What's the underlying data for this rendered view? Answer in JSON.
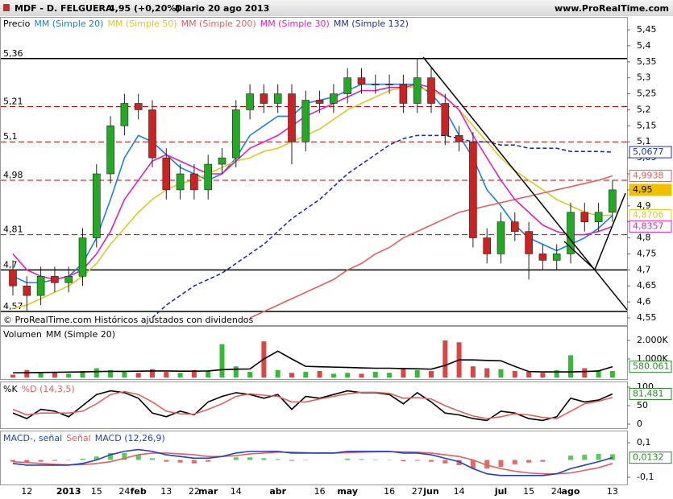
{
  "chart_data": [
    {
      "type": "candlestick",
      "title": "MDF - D. FELGUERA",
      "price_change": "4,95 (+0,20%)",
      "period": "Diario 20 ago 2013",
      "site": "www.ProRealTime.com",
      "footer": "© ProRealTime.com Históricos ajustados con dividendos",
      "categories": [
        null,
        "12",
        null,
        null,
        "2013",
        null,
        "15",
        null,
        "24",
        "feb",
        null,
        "13",
        null,
        "22",
        "mar",
        null,
        "14",
        null,
        null,
        "abr",
        null,
        null,
        "16",
        null,
        "may",
        null,
        null,
        "16",
        null,
        "27",
        "jun",
        null,
        "14",
        null,
        null,
        "jul",
        null,
        "15",
        null,
        "24",
        "ago",
        null,
        null,
        "13"
      ],
      "name": "Precio",
      "up_color": "#22aa22",
      "down_color": "#cc2222",
      "open": [
        4.7,
        4.65,
        4.62,
        4.68,
        4.66,
        4.68,
        4.8,
        5.0,
        5.15,
        5.22,
        5.2,
        5.05,
        4.95,
        5.0,
        4.95,
        5.03,
        5.05,
        5.2,
        5.25,
        5.22,
        5.25,
        5.1,
        5.23,
        5.22,
        5.25,
        5.3,
        5.28,
        5.28,
        5.28,
        5.22,
        5.3,
        5.22,
        5.12,
        5.1,
        4.8,
        4.75,
        4.85,
        4.82,
        4.75,
        4.73,
        4.75,
        4.88,
        4.85,
        4.88
      ],
      "high": [
        4.73,
        4.68,
        4.71,
        4.71,
        4.71,
        4.83,
        5.03,
        5.18,
        5.25,
        5.25,
        5.23,
        5.08,
        5.03,
        5.03,
        5.06,
        5.08,
        5.23,
        5.28,
        5.28,
        5.28,
        5.28,
        5.26,
        5.26,
        5.28,
        5.33,
        5.33,
        5.31,
        5.31,
        5.31,
        5.36,
        5.33,
        5.25,
        5.15,
        5.13,
        4.83,
        4.88,
        4.88,
        4.85,
        4.78,
        4.78,
        4.91,
        4.91,
        4.91,
        4.98
      ],
      "low": [
        4.62,
        4.57,
        4.59,
        4.63,
        4.63,
        4.65,
        4.77,
        4.97,
        5.12,
        5.17,
        5.02,
        4.92,
        4.92,
        4.92,
        4.92,
        5.0,
        5.02,
        5.17,
        5.19,
        5.19,
        5.03,
        5.07,
        5.19,
        5.19,
        5.22,
        5.25,
        5.25,
        5.25,
        5.19,
        5.19,
        5.19,
        5.09,
        5.07,
        4.77,
        4.72,
        4.72,
        4.79,
        4.67,
        4.7,
        4.7,
        4.72,
        4.82,
        4.82,
        4.85
      ],
      "close": [
        4.65,
        4.62,
        4.68,
        4.66,
        4.68,
        4.8,
        5.0,
        5.15,
        5.22,
        5.2,
        5.05,
        4.95,
        5.0,
        4.95,
        5.03,
        5.05,
        5.2,
        5.25,
        5.22,
        5.25,
        5.1,
        5.23,
        5.22,
        5.25,
        5.3,
        5.28,
        5.28,
        5.28,
        5.22,
        5.3,
        5.22,
        5.12,
        5.1,
        4.8,
        4.75,
        4.85,
        4.82,
        4.75,
        4.73,
        4.75,
        4.88,
        4.85,
        4.88,
        4.95
      ],
      "last_label": "4,95",
      "last_color": "#f0c000",
      "series": [
        {
          "name": "MM (Simple 20)",
          "color": "#1e7fe0",
          "values": [
            4.68,
            4.66,
            4.66,
            4.67,
            4.68,
            4.72,
            4.8,
            4.92,
            5.05,
            5.12,
            5.1,
            5.06,
            5.02,
            5.0,
            4.98,
            5.0,
            5.05,
            5.12,
            5.15,
            5.18,
            5.18,
            5.22,
            5.23,
            5.24,
            5.26,
            5.28,
            5.28,
            5.28,
            5.28,
            5.28,
            5.25,
            5.2,
            5.12,
            5.05,
            4.95,
            4.9,
            4.84,
            4.8,
            4.78,
            4.76,
            4.78,
            4.8,
            4.83,
            4.87
          ]
        },
        {
          "name": "MM (Simple 50)",
          "color": "#d8cc20",
          "values": [
            4.58,
            4.59,
            4.61,
            4.63,
            4.65,
            4.68,
            4.72,
            4.78,
            4.83,
            4.88,
            4.92,
            4.95,
            4.97,
            4.98,
            5.0,
            5.02,
            5.04,
            5.05,
            5.07,
            5.08,
            5.1,
            5.12,
            5.14,
            5.17,
            5.2,
            5.22,
            5.24,
            5.26,
            5.27,
            5.27,
            5.26,
            5.24,
            5.2,
            5.15,
            5.1,
            5.05,
            5.01,
            4.98,
            4.95,
            4.92,
            4.9,
            4.88,
            4.87,
            4.8706
          ],
          "last_label": "4,8706"
        },
        {
          "name": "MM (Simple 200)",
          "color": "#e06060",
          "values": [
            null,
            null,
            null,
            null,
            null,
            null,
            null,
            null,
            null,
            null,
            null,
            null,
            null,
            null,
            null,
            null,
            null,
            4.55,
            4.57,
            4.59,
            4.61,
            4.63,
            4.65,
            4.67,
            4.7,
            4.72,
            4.75,
            4.77,
            4.8,
            4.82,
            4.84,
            4.86,
            4.88,
            4.89,
            4.9,
            4.91,
            4.92,
            4.93,
            4.94,
            4.95,
            4.96,
            4.97,
            4.98,
            4.9938
          ],
          "last_label": "4,9938"
        },
        {
          "name": "MM (Simple 30)",
          "color": "#e020c0",
          "values": [
            4.75,
            4.7,
            4.68,
            4.67,
            4.68,
            4.7,
            4.75,
            4.82,
            4.92,
            4.98,
            5.04,
            5.06,
            5.04,
            5.02,
            5.0,
            5.0,
            5.04,
            5.08,
            5.1,
            5.12,
            5.15,
            5.18,
            5.2,
            5.22,
            5.24,
            5.26,
            5.26,
            5.27,
            5.27,
            5.28,
            5.27,
            5.24,
            5.2,
            5.12,
            5.05,
            4.98,
            4.92,
            4.88,
            4.84,
            4.82,
            4.81,
            4.81,
            4.82,
            4.8357
          ],
          "last_label": "4,8357"
        },
        {
          "name": "MM (Simple 132)",
          "color": "#2030a0",
          "dashed": true,
          "values": [
            null,
            null,
            null,
            null,
            null,
            null,
            null,
            null,
            null,
            null,
            4.55,
            4.59,
            4.62,
            4.65,
            4.67,
            4.69,
            4.72,
            4.75,
            4.78,
            4.82,
            4.86,
            4.89,
            4.92,
            4.96,
            5.0,
            5.03,
            5.06,
            5.09,
            5.11,
            5.12,
            5.12,
            5.12,
            5.11,
            5.1,
            5.1,
            5.09,
            5.09,
            5.08,
            5.08,
            5.08,
            5.07,
            5.07,
            5.07,
            5.0677
          ],
          "last_label": "5,0677"
        }
      ],
      "levels": [
        {
          "value": 5.36,
          "label": "5,36",
          "style": "solid"
        },
        {
          "value": 5.21,
          "label": "5,21",
          "style": "dashed"
        },
        {
          "value": 5.1,
          "label": "5,1",
          "style": "dashed"
        },
        {
          "value": 4.98,
          "label": "4,98",
          "style": "dashed"
        },
        {
          "value": 4.81,
          "label": "4,81",
          "style": "dashed"
        },
        {
          "value": 4.7,
          "label": "4,7",
          "style": "solid"
        },
        {
          "value": 4.57,
          "label": "4,57",
          "style": "solid"
        }
      ],
      "ylim": [
        4.55,
        5.45
      ],
      "yticks": [
        {
          "value": 4.55,
          "label": "4,55"
        },
        {
          "value": 4.6,
          "label": "4,6"
        },
        {
          "value": 4.65,
          "label": "4,65"
        },
        {
          "value": 4.7,
          "label": "4,7"
        },
        {
          "value": 4.75,
          "label": "4,75"
        },
        {
          "value": 4.8,
          "label": "4,8"
        },
        {
          "value": 4.85,
          "label": "4,85"
        },
        {
          "value": 4.9,
          "label": "4,9"
        },
        {
          "value": 4.95,
          "label": "4,95"
        },
        {
          "value": 5.0,
          "label": "5"
        },
        {
          "value": 5.05,
          "label": "5,05"
        },
        {
          "value": 5.1,
          "label": "5,1"
        },
        {
          "value": 5.15,
          "label": "5,15"
        },
        {
          "value": 5.2,
          "label": "5,2"
        },
        {
          "value": 5.25,
          "label": "5,25"
        },
        {
          "value": 5.3,
          "label": "5,3"
        },
        {
          "value": 5.35,
          "label": "5,35"
        },
        {
          "value": 5.4,
          "label": "5,4"
        },
        {
          "value": 5.45,
          "label": "5,45"
        }
      ]
    },
    {
      "type": "bar",
      "name": "Volumen",
      "up_color": "#33bb33",
      "down_color": "#dd4444",
      "values": [
        150,
        400,
        250,
        300,
        200,
        350,
        500,
        400,
        300,
        250,
        450,
        300,
        250,
        400,
        350,
        1800,
        600,
        300,
        1950,
        400,
        250,
        300,
        350,
        200,
        250,
        200,
        300,
        250,
        500,
        400,
        350,
        2000,
        1900,
        600,
        500,
        450,
        350,
        300,
        250,
        400,
        1200,
        500,
        400,
        350
      ],
      "series": [
        {
          "name": "MM (Simple 20)",
          "color": "#000000",
          "values": [
            250,
            260,
            270,
            280,
            290,
            300,
            320,
            330,
            330,
            340,
            350,
            350,
            340,
            340,
            350,
            420,
            450,
            460,
            1000,
            1420,
            1000,
            600,
            580,
            560,
            540,
            520,
            500,
            500,
            480,
            470,
            450,
            650,
            950,
            950,
            920,
            900,
            600,
            320,
            300,
            300,
            300,
            320,
            350,
            580.061
          ],
          "last_label": "580.061"
        }
      ],
      "ylim": [
        0,
        2000
      ],
      "yticks": [
        {
          "value": 1000,
          "label": "1.000K"
        },
        {
          "value": 2000,
          "label": "2.000K"
        }
      ]
    },
    {
      "type": "line",
      "series": [
        {
          "name": "%K",
          "color": "#000000",
          "values": [
            30,
            15,
            40,
            35,
            20,
            50,
            80,
            90,
            85,
            70,
            30,
            20,
            35,
            25,
            60,
            75,
            85,
            80,
            70,
            80,
            40,
            75,
            70,
            80,
            90,
            85,
            85,
            80,
            55,
            85,
            60,
            30,
            25,
            15,
            10,
            35,
            30,
            15,
            10,
            20,
            70,
            60,
            65,
            81.481
          ],
          "last_label": "81,481"
        },
        {
          "name": "%D (14,3,5)",
          "color": "#e06060",
          "values": [
            40,
            25,
            30,
            30,
            30,
            35,
            55,
            80,
            88,
            80,
            60,
            35,
            28,
            27,
            40,
            55,
            75,
            82,
            78,
            75,
            60,
            60,
            68,
            75,
            82,
            86,
            86,
            83,
            70,
            72,
            68,
            50,
            35,
            22,
            15,
            20,
            28,
            25,
            18,
            15,
            35,
            55,
            62,
            72
          ]
        }
      ],
      "ylim": [
        0,
        100
      ],
      "yticks": [
        0,
        50,
        100
      ]
    },
    {
      "type": "macd",
      "name": "MACD-, señal",
      "up_color": "#33bb33",
      "down_color": "#dd4444",
      "histogram": [
        -0.01,
        -0.015,
        -0.01,
        -0.005,
        -0.002,
        0.007,
        0.02,
        0.04,
        0.04,
        0.03,
        0.01,
        -0.01,
        -0.015,
        -0.02,
        -0.01,
        0,
        0.015,
        0.015,
        0.01,
        0.005,
        -0.005,
        -0.002,
        0,
        0,
        0.008,
        0.005,
        0.003,
        0.002,
        -0.007,
        -0.005,
        -0.01,
        -0.02,
        -0.03,
        -0.05,
        -0.05,
        -0.04,
        -0.025,
        -0.015,
        -0.01,
        0,
        0.025,
        0.03,
        0.035,
        0.0332
      ],
      "series": [
        {
          "name": "Señal",
          "color": "#e06060",
          "values": [
            -0.01,
            -0.015,
            -0.02,
            -0.025,
            -0.028,
            -0.027,
            -0.02,
            -0.01,
            0.01,
            0.03,
            0.04,
            0.04,
            0.035,
            0.03,
            0.02,
            0.02,
            0.025,
            0.035,
            0.04,
            0.045,
            0.045,
            0.042,
            0.04,
            0.04,
            0.042,
            0.045,
            0.047,
            0.048,
            0.047,
            0.045,
            0.04,
            0.03,
            0.02,
            0.0,
            -0.03,
            -0.05,
            -0.065,
            -0.075,
            -0.08,
            -0.08,
            -0.075,
            -0.06,
            -0.045,
            -0.02
          ]
        },
        {
          "name": "MACD (12,26,9)",
          "color": "#2040c0",
          "values": [
            -0.02,
            -0.03,
            -0.03,
            -0.03,
            -0.03,
            -0.02,
            0.0,
            0.03,
            0.05,
            0.06,
            0.05,
            0.03,
            0.02,
            0.01,
            0.01,
            0.02,
            0.04,
            0.05,
            0.05,
            0.05,
            0.04,
            0.04,
            0.04,
            0.04,
            0.05,
            0.05,
            0.05,
            0.05,
            0.04,
            0.04,
            0.03,
            0.01,
            -0.01,
            -0.05,
            -0.08,
            -0.09,
            -0.09,
            -0.09,
            -0.09,
            -0.08,
            -0.05,
            -0.03,
            -0.01,
            0.0132
          ],
          "last_label": "0,0132"
        }
      ],
      "ylim": [
        -0.1,
        0.1
      ],
      "yticks": [
        {
          "value": -0.1,
          "label": "-0,1"
        },
        {
          "value": 0.1,
          "label": "0,1"
        }
      ]
    }
  ]
}
